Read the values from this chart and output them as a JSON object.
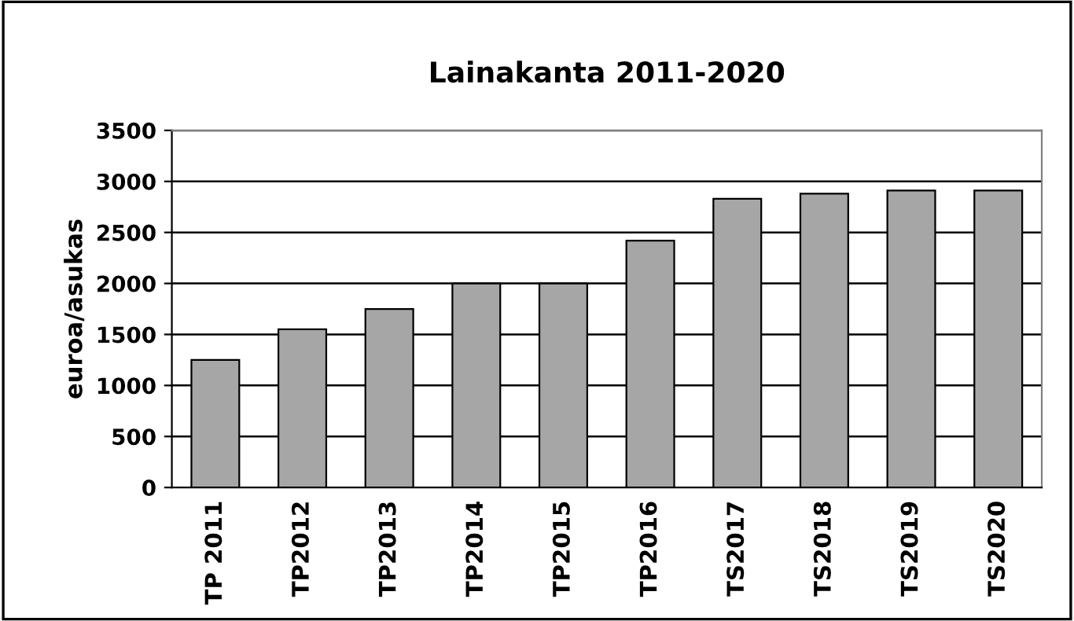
{
  "chart_data": {
    "type": "bar",
    "title": "Lainakanta 2011-2020",
    "ylabel": "euroa/asukas",
    "categories": [
      "TP 2011",
      "TP2012",
      "TP2013",
      "TP2014",
      "TP2015",
      "TP2016",
      "TS2017",
      "TS2018",
      "TS2019",
      "TS2020"
    ],
    "values": [
      1250,
      1550,
      1750,
      2000,
      2000,
      2420,
      2830,
      2880,
      2910,
      2910
    ],
    "color": "#a6a6a6",
    "ylim": [
      0,
      3500
    ],
    "yticks": [
      0,
      500,
      1000,
      1500,
      2000,
      2500,
      3000,
      3500
    ],
    "grid": "y"
  }
}
